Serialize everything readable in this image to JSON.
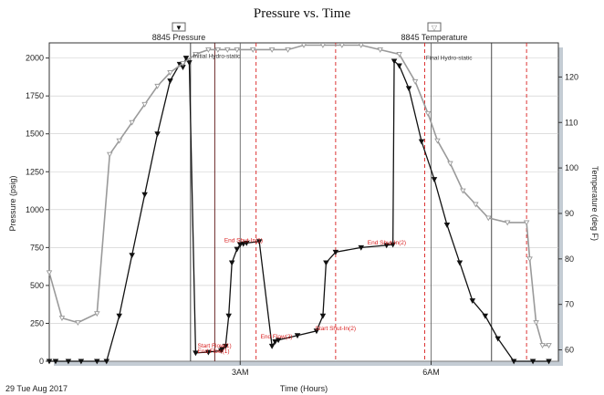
{
  "chart_data": {
    "type": "line",
    "title": "Pressure vs. Time",
    "xlabel": "Time (Hours)",
    "ylabel_left": "Pressure (psig)",
    "ylabel_right": "Temperature (deg F)",
    "date_label": "29 Tue Aug 2017",
    "legend": [
      {
        "label": "8845 Pressure",
        "marker": "▼"
      },
      {
        "label": "8845 Temperature",
        "marker": "▽"
      }
    ],
    "x_range_hours": [
      0.0,
      8.0
    ],
    "x_ticks": [
      {
        "label": "3AM",
        "hour": 3.0
      },
      {
        "label": "6AM",
        "hour": 6.0
      }
    ],
    "y_left": {
      "min": 0,
      "max": 2100,
      "ticks": [
        0,
        250,
        500,
        750,
        1000,
        1250,
        1500,
        1750,
        2000
      ]
    },
    "y_right": {
      "min": 57.5,
      "max": 127.5,
      "ticks": [
        60,
        70,
        80,
        90,
        100,
        110,
        120
      ]
    },
    "grid": true,
    "series": [
      {
        "name": "8845 Pressure",
        "axis": "left",
        "color": "#111111",
        "x": [
          0.0,
          0.1,
          0.3,
          0.5,
          0.75,
          0.9,
          1.1,
          1.3,
          1.5,
          1.7,
          1.9,
          2.05,
          2.1,
          2.15,
          2.2,
          2.3,
          2.5,
          2.7,
          2.72,
          2.77,
          2.82,
          2.87,
          2.95,
          3.0,
          3.05,
          3.1,
          3.3,
          3.5,
          3.55,
          3.6,
          3.9,
          4.2,
          4.3,
          4.35,
          4.5,
          4.9,
          5.3,
          5.4,
          5.42,
          5.5,
          5.65,
          5.85,
          6.05,
          6.25,
          6.45,
          6.65,
          6.85,
          7.05,
          7.3,
          7.6,
          7.85
        ],
        "y": [
          0,
          0,
          0,
          0,
          0,
          0,
          300,
          700,
          1100,
          1500,
          1850,
          1960,
          1940,
          2000,
          1970,
          55,
          60,
          70,
          80,
          100,
          300,
          650,
          740,
          770,
          775,
          780,
          790,
          100,
          130,
          140,
          170,
          200,
          300,
          650,
          720,
          750,
          765,
          770,
          1980,
          1950,
          1800,
          1450,
          1200,
          900,
          650,
          400,
          300,
          150,
          0,
          0,
          0
        ]
      },
      {
        "name": "8845 Temperature",
        "axis": "right",
        "color": "#9a9a9a",
        "x": [
          0.0,
          0.2,
          0.45,
          0.75,
          0.95,
          1.1,
          1.3,
          1.5,
          1.7,
          1.9,
          2.1,
          2.3,
          2.5,
          2.65,
          2.8,
          2.95,
          3.2,
          3.5,
          3.75,
          4.0,
          4.3,
          4.6,
          4.9,
          5.2,
          5.5,
          5.75,
          5.95,
          6.1,
          6.3,
          6.5,
          6.7,
          6.9,
          7.2,
          7.5,
          7.55,
          7.65,
          7.75,
          7.85
        ],
        "y": [
          77,
          67,
          66,
          68,
          103,
          106,
          110,
          114,
          118,
          121,
          123,
          125,
          126,
          126,
          126,
          126,
          126,
          126,
          126,
          127,
          127,
          127,
          127,
          126,
          125,
          119,
          112,
          106,
          101,
          95,
          92,
          89,
          88,
          88,
          80,
          66,
          61,
          61
        ]
      }
    ],
    "event_lines": [
      {
        "hour": 2.22,
        "color": "#333333",
        "style": "solid"
      },
      {
        "hour": 2.6,
        "color": "#5a1010",
        "style": "solid"
      },
      {
        "hour": 3.25,
        "color": "#d91e1e",
        "style": "dashed"
      },
      {
        "hour": 4.5,
        "color": "#d91e1e",
        "style": "dashed"
      },
      {
        "hour": 5.9,
        "color": "#d91e1e",
        "style": "dashed"
      },
      {
        "hour": 6.95,
        "color": "#333333",
        "style": "solid"
      },
      {
        "hour": 7.5,
        "color": "#d91e1e",
        "style": "dashed"
      }
    ],
    "annotations": [
      {
        "text": "Initial Hydro-static",
        "hour": 2.26,
        "psi": 2000,
        "color": "#333333"
      },
      {
        "text": "End Shut-In(1)",
        "hour": 2.75,
        "psi": 785,
        "color": "#d91e1e"
      },
      {
        "text": "Start Flow(1)",
        "hour": 2.33,
        "psi": 90,
        "color": "#d91e1e"
      },
      {
        "text": "End Flow(1)",
        "hour": 2.33,
        "psi": 55,
        "color": "#d91e1e"
      },
      {
        "text": "End Flow(2)",
        "hour": 3.32,
        "psi": 150,
        "color": "#d91e1e"
      },
      {
        "text": "Start Shut-In(2)",
        "hour": 4.18,
        "psi": 205,
        "color": "#d91e1e"
      },
      {
        "text": "End Shut-In(2)",
        "hour": 5.0,
        "psi": 770,
        "color": "#d91e1e"
      },
      {
        "text": "Final Hydro-static",
        "hour": 5.92,
        "psi": 1990,
        "color": "#333333"
      }
    ]
  }
}
